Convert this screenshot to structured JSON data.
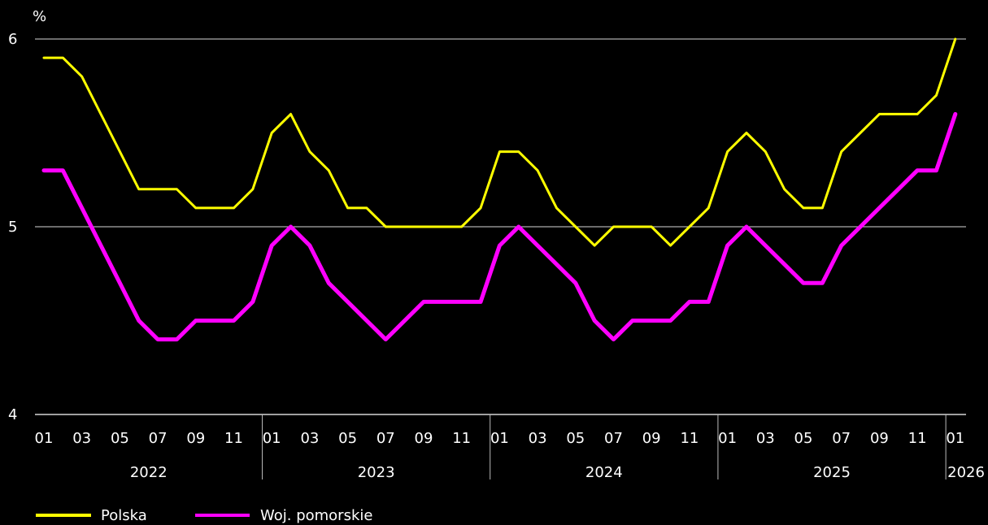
{
  "chart_data": {
    "type": "line",
    "ylabel": "%",
    "ylim": [
      4,
      6
    ],
    "yticks": [
      "4",
      "5",
      "6"
    ],
    "grid": true,
    "legend_position": "bottom-left",
    "x": [
      "2022-01",
      "2022-02",
      "2022-03",
      "2022-04",
      "2022-05",
      "2022-06",
      "2022-07",
      "2022-08",
      "2022-09",
      "2022-10",
      "2022-11",
      "2022-12",
      "2023-01",
      "2023-02",
      "2023-03",
      "2023-04",
      "2023-05",
      "2023-06",
      "2023-07",
      "2023-08",
      "2023-09",
      "2023-10",
      "2023-11",
      "2023-12",
      "2024-01",
      "2024-02",
      "2024-03",
      "2024-04",
      "2024-05",
      "2024-06",
      "2024-07",
      "2024-08",
      "2024-09",
      "2024-10",
      "2024-11",
      "2024-12",
      "2025-01",
      "2025-02",
      "2025-03",
      "2025-04",
      "2025-05",
      "2025-06",
      "2025-07",
      "2025-08",
      "2025-09",
      "2025-10",
      "2025-11",
      "2025-12",
      "2026-01"
    ],
    "month_labels": [
      "01",
      "03",
      "05",
      "07",
      "09",
      "11"
    ],
    "month_label_indices": [
      0,
      2,
      4,
      6,
      8,
      10
    ],
    "years": [
      "2022",
      "2023",
      "2024",
      "2025",
      "2026"
    ],
    "last_month_label": "01",
    "series": [
      {
        "name": "Polska",
        "color": "#ffff00",
        "values": [
          5.9,
          5.9,
          5.8,
          5.6,
          5.4,
          5.2,
          5.2,
          5.2,
          5.1,
          5.1,
          5.1,
          5.2,
          5.5,
          5.6,
          5.4,
          5.3,
          5.1,
          5.1,
          5.0,
          5.0,
          5.0,
          5.0,
          5.0,
          5.1,
          5.4,
          5.4,
          5.3,
          5.1,
          5.0,
          4.9,
          5.0,
          5.0,
          5.0,
          4.9,
          5.0,
          5.1,
          5.4,
          5.5,
          5.4,
          5.2,
          5.1,
          5.1,
          5.4,
          5.5,
          5.6,
          5.6,
          5.6,
          5.7,
          6.0
        ]
      },
      {
        "name": "Woj. pomorskie",
        "color": "#ff00ff",
        "values": [
          5.3,
          5.3,
          5.1,
          4.9,
          4.7,
          4.5,
          4.4,
          4.4,
          4.5,
          4.5,
          4.5,
          4.6,
          4.9,
          5.0,
          4.9,
          4.7,
          4.6,
          4.5,
          4.4,
          4.5,
          4.6,
          4.6,
          4.6,
          4.6,
          4.9,
          5.0,
          4.9,
          4.8,
          4.7,
          4.5,
          4.4,
          4.5,
          4.5,
          4.5,
          4.6,
          4.6,
          4.9,
          5.0,
          4.9,
          4.8,
          4.7,
          4.7,
          4.9,
          5.0,
          5.1,
          5.2,
          5.3,
          5.3,
          5.6
        ]
      }
    ]
  }
}
